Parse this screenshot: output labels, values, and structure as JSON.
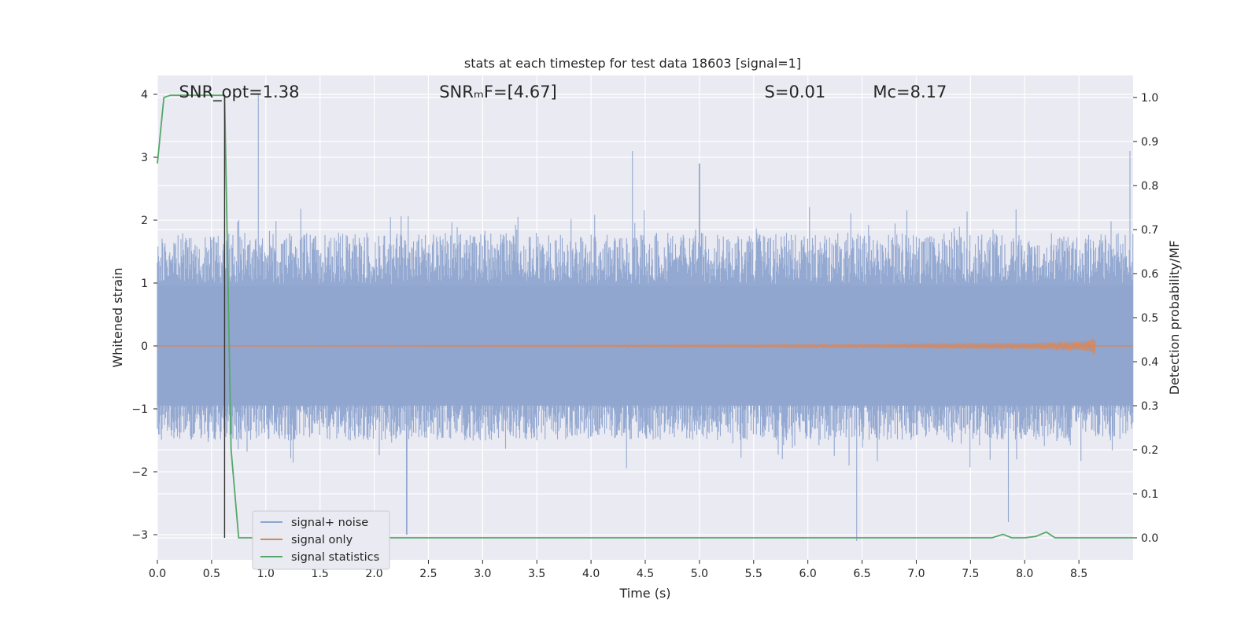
{
  "chart_data": {
    "type": "line",
    "title": "stats at each timestep for test data 18603 [signal=1]",
    "xlabel": "Time (s)",
    "ylabel_left": "Whitened strain",
    "ylabel_right": "Detection probability/MF",
    "xlim": [
      0.0,
      9.0
    ],
    "ylim_left": [
      -3.4,
      4.3
    ],
    "ylim_right": [
      -0.05,
      1.05
    ],
    "x_ticks": [
      0.0,
      0.5,
      1.0,
      1.5,
      2.0,
      2.5,
      3.0,
      3.5,
      4.0,
      4.5,
      5.0,
      5.5,
      6.0,
      6.5,
      7.0,
      7.5,
      8.0,
      8.5
    ],
    "x_tick_labels": [
      "0.0",
      "0.5",
      "1.0",
      "1.5",
      "2.0",
      "2.5",
      "3.0",
      "3.5",
      "4.0",
      "4.5",
      "5.0",
      "5.5",
      "6.0",
      "6.5",
      "7.0",
      "7.5",
      "8.0",
      "8.5"
    ],
    "y_left_ticks": [
      -3,
      -2,
      -1,
      0,
      1,
      2,
      3,
      4
    ],
    "y_left_tick_labels": [
      "−3",
      "−2",
      "−1",
      "0",
      "1",
      "2",
      "3",
      "4"
    ],
    "y_right_ticks": [
      0.0,
      0.1,
      0.2,
      0.3,
      0.4,
      0.5,
      0.6,
      0.7,
      0.8,
      0.9,
      1.0
    ],
    "y_right_tick_labels": [
      "0.0",
      "0.1",
      "0.2",
      "0.3",
      "0.4",
      "0.5",
      "0.6",
      "0.7",
      "0.8",
      "0.9",
      "1.0"
    ],
    "grid": true,
    "legend_position": "bottom-left",
    "annotations": [
      {
        "text": "SNR_opt=1.38",
        "x": 0.2
      },
      {
        "text": "SNRₘF=[4.67]",
        "x": 2.6
      },
      {
        "text": "S=0.01",
        "x": 5.6
      },
      {
        "text": "Mᴄ=8.17",
        "x": 6.6
      }
    ],
    "event_marker_x": 0.62,
    "series": [
      {
        "name": "signal+ noise",
        "color": "#8fa5cf",
        "axis": "left",
        "style": "noise",
        "x_range": [
          0.0,
          9.0
        ],
        "typical_band": [
          -1.5,
          1.8
        ],
        "peaks": [
          {
            "x": 0.93,
            "y": 4.0
          },
          {
            "x": 4.38,
            "y": 3.1
          },
          {
            "x": 5.0,
            "y": 2.9
          },
          {
            "x": 8.97,
            "y": 3.1
          },
          {
            "x": 2.3,
            "y": -3.0
          },
          {
            "x": 6.45,
            "y": -3.1
          },
          {
            "x": 7.85,
            "y": -2.8
          }
        ]
      },
      {
        "name": "signal only",
        "color": "#dd8452",
        "axis": "left",
        "style": "chirp",
        "x_range": [
          0.0,
          9.0
        ],
        "merger_x": 8.65,
        "peak_amplitude": 0.18
      },
      {
        "name": "signal statistics",
        "color": "#55a868",
        "axis": "right",
        "style": "line",
        "x": [
          0.0,
          0.06,
          0.12,
          0.2,
          0.3,
          0.4,
          0.5,
          0.6,
          0.62,
          0.68,
          0.75,
          1.0,
          2.0,
          3.0,
          4.0,
          5.0,
          6.0,
          7.0,
          7.7,
          7.8,
          7.88,
          8.0,
          8.1,
          8.2,
          8.28,
          8.4,
          9.0
        ],
        "y": [
          0.85,
          1.0,
          1.005,
          1.005,
          1.005,
          1.005,
          1.005,
          1.005,
          1.005,
          0.2,
          0.0,
          0.0,
          0.0,
          0.0,
          0.0,
          0.0,
          0.0,
          0.0,
          0.0,
          0.008,
          0.0,
          0.0,
          0.003,
          0.013,
          0.0,
          0.0,
          0.0
        ]
      }
    ]
  }
}
